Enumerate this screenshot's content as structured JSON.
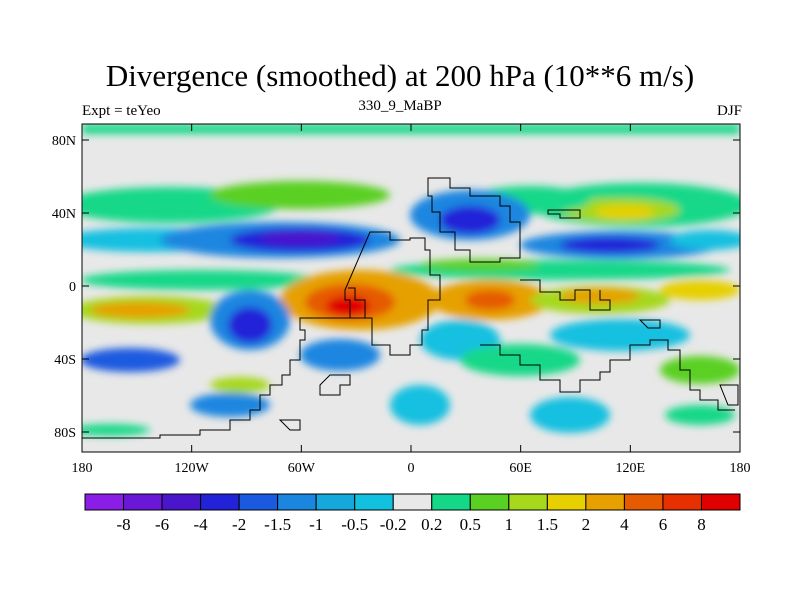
{
  "header": {
    "title": "Divergence (smoothed) at 200 hPa (10**6 m/s)",
    "center_subtitle": "330_9_MaBP",
    "left_subtitle": "Expt = teYeo",
    "right_subtitle": "DJF"
  },
  "map": {
    "y_ticks": [
      "80N",
      "40N",
      "0",
      "40S",
      "80S"
    ],
    "x_ticks": [
      "180",
      "120W",
      "60W",
      "0",
      "60E",
      "120E",
      "180"
    ],
    "colors": {
      "background": "#e8e8e8",
      "coastline": "#000000"
    }
  },
  "colorbar": {
    "labels": [
      "-8",
      "-6",
      "-4",
      "-2",
      "-1.5",
      "-1",
      "-0.5",
      "-0.2",
      "0.2",
      "0.5",
      "1",
      "1.5",
      "2",
      "4",
      "6",
      "8"
    ],
    "colors": [
      "#8a1ee6",
      "#6a17d8",
      "#4a16cc",
      "#2222d8",
      "#1a5ae0",
      "#1a86e0",
      "#14a8dc",
      "#12c0e0",
      "#e8e8e8",
      "#14d888",
      "#5ad022",
      "#a6d81c",
      "#e6d000",
      "#e6a000",
      "#e65a00",
      "#e63000",
      "#e00000"
    ]
  }
}
